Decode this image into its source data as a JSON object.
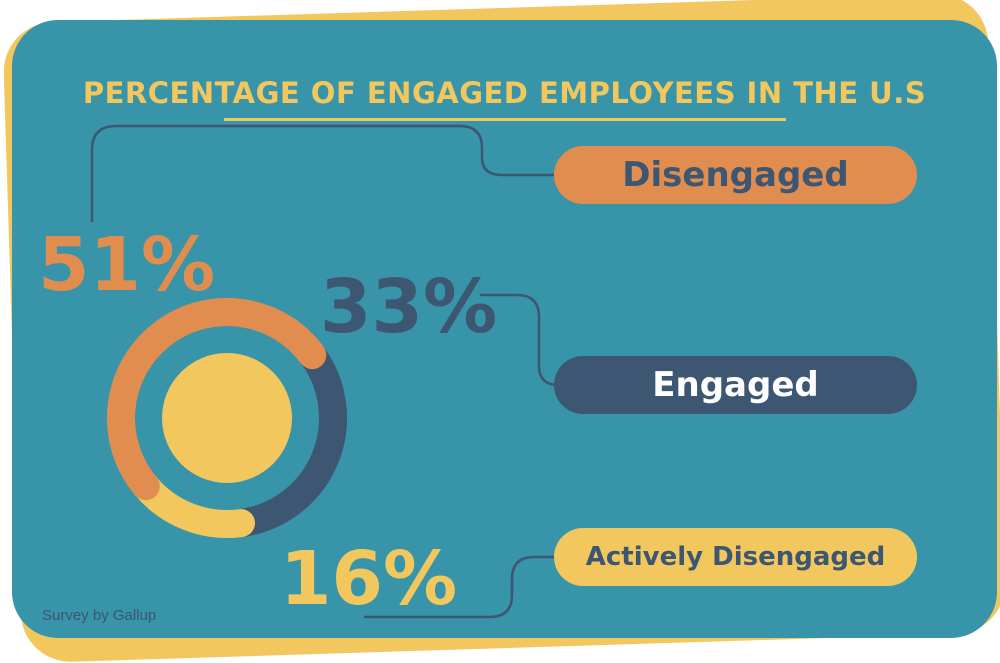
{
  "chart_data": {
    "type": "pie",
    "title": "PERCENTAGE OF ENGAGED EMPLOYEES IN THE U.S",
    "categories": [
      "Disengaged",
      "Engaged",
      "Actively Disengaged"
    ],
    "values": [
      51,
      33,
      16
    ],
    "value_labels": [
      "51%",
      "33%",
      "16%"
    ],
    "colors": [
      "#e08d4f",
      "#3d5672",
      "#f2c75e"
    ],
    "center_color": "#f2c75e",
    "source": "Survey by Gallup"
  }
}
